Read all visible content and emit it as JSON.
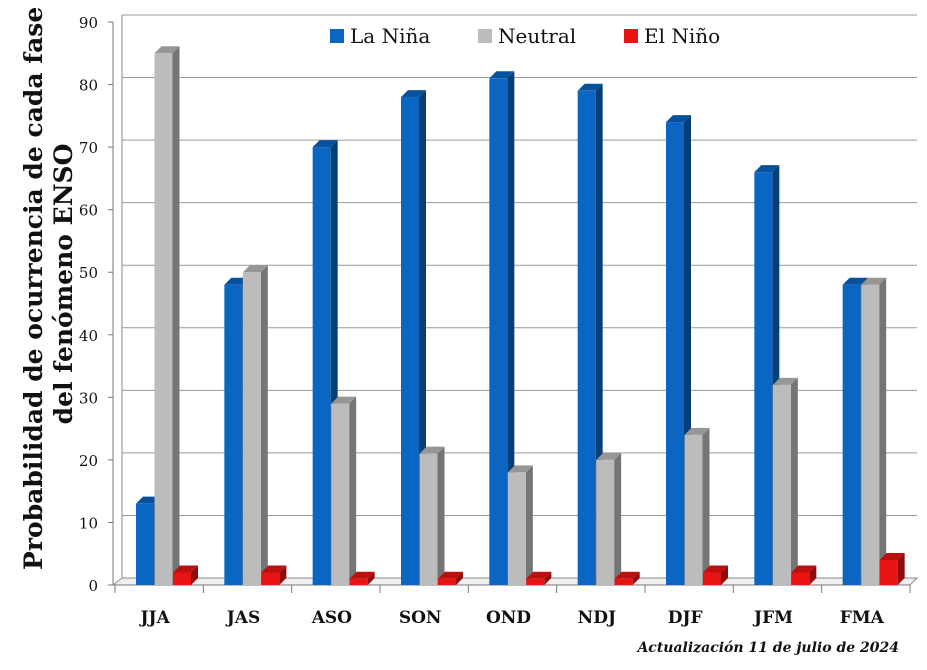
{
  "chart_data": {
    "type": "bar",
    "title": "",
    "ylabel_lines": [
      "Probabilidad de ocurrencia  de cada fase",
      "del fenómeno ENSO"
    ],
    "xlabel": "",
    "categories": [
      "JJA",
      "JAS",
      "ASO",
      "SON",
      "OND",
      "NDJ",
      "DJF",
      "JFM",
      "FMA"
    ],
    "series": [
      {
        "name": "La Niña",
        "color": "#0a66c2",
        "values": [
          13,
          48,
          70,
          78,
          81,
          79,
          74,
          66,
          48
        ]
      },
      {
        "name": "Neutral",
        "color": "#bcbcbc",
        "values": [
          85,
          50,
          29,
          21,
          18,
          20,
          24,
          32,
          48
        ]
      },
      {
        "name": "El Niño",
        "color": "#e81414",
        "values": [
          2,
          2,
          1,
          1,
          1,
          1,
          2,
          2,
          4
        ]
      }
    ],
    "ylim": [
      0,
      90
    ],
    "yticks": [
      0,
      10,
      20,
      30,
      40,
      50,
      60,
      70,
      80,
      90
    ],
    "grid": true,
    "legend_position": "top",
    "style": "3d-column"
  },
  "footnote": "Actualización 11 de julio de 2024"
}
